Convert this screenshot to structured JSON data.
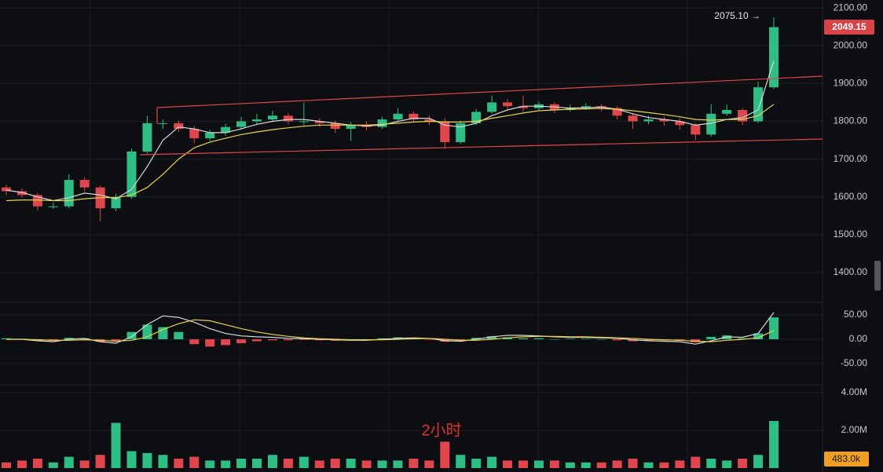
{
  "chart_data": [
    {
      "type": "candlestick",
      "open": [
        1625,
        1615,
        1605,
        1575,
        1575,
        1645,
        1625,
        1570,
        1600,
        1720,
        1795,
        1795,
        1780,
        1755,
        1770,
        1785,
        1800,
        1805,
        1815,
        1800,
        1800,
        1795,
        1780,
        1790,
        1785,
        1805,
        1820,
        1805,
        1800,
        1745,
        1795,
        1825,
        1850,
        1840,
        1835,
        1845,
        1830,
        1835,
        1840,
        1835,
        1815,
        1800,
        1805,
        1800,
        1790,
        1765,
        1820,
        1830,
        1800,
        1890
      ],
      "high": [
        1632,
        1622,
        1610,
        1585,
        1660,
        1652,
        1630,
        1608,
        1728,
        1815,
        1805,
        1802,
        1788,
        1778,
        1794,
        1812,
        1820,
        1828,
        1822,
        1850,
        1808,
        1802,
        1798,
        1800,
        1812,
        1835,
        1826,
        1815,
        1808,
        1802,
        1832,
        1868,
        1858,
        1868,
        1852,
        1850,
        1845,
        1848,
        1846,
        1840,
        1822,
        1815,
        1812,
        1808,
        1795,
        1845,
        1845,
        1835,
        1905,
        2075.1
      ],
      "low": [
        1605,
        1598,
        1565,
        1568,
        1570,
        1615,
        1535,
        1562,
        1595,
        1715,
        1780,
        1772,
        1742,
        1748,
        1762,
        1778,
        1792,
        1798,
        1792,
        1790,
        1785,
        1770,
        1748,
        1776,
        1780,
        1798,
        1798,
        1790,
        1728,
        1740,
        1790,
        1820,
        1832,
        1826,
        1828,
        1822,
        1826,
        1830,
        1826,
        1805,
        1780,
        1792,
        1788,
        1778,
        1750,
        1760,
        1815,
        1790,
        1795,
        1885
      ],
      "close": [
        1615,
        1605,
        1575,
        1575,
        1645,
        1625,
        1570,
        1600,
        1720,
        1795,
        1795,
        1780,
        1755,
        1770,
        1785,
        1800,
        1805,
        1815,
        1800,
        1800,
        1795,
        1780,
        1790,
        1785,
        1805,
        1820,
        1805,
        1800,
        1745,
        1795,
        1825,
        1850,
        1840,
        1835,
        1845,
        1830,
        1835,
        1840,
        1835,
        1815,
        1800,
        1805,
        1800,
        1790,
        1765,
        1820,
        1830,
        1800,
        1890,
        2049.15
      ],
      "lines": [
        {
          "color": "#d9d9d9",
          "values": [
            1618,
            1612,
            1600,
            1590,
            1598,
            1610,
            1605,
            1595,
            1620,
            1680,
            1750,
            1785,
            1780,
            1770,
            1770,
            1780,
            1792,
            1800,
            1805,
            1805,
            1800,
            1795,
            1790,
            1788,
            1790,
            1800,
            1808,
            1808,
            1790,
            1785,
            1795,
            1815,
            1830,
            1840,
            1840,
            1838,
            1835,
            1836,
            1838,
            1832,
            1820,
            1810,
            1805,
            1800,
            1790,
            1795,
            1805,
            1810,
            1830,
            1960
          ]
        },
        {
          "color": "#e8d44d",
          "values": [
            1590,
            1592,
            1592,
            1590,
            1590,
            1595,
            1598,
            1598,
            1605,
            1625,
            1660,
            1700,
            1730,
            1745,
            1755,
            1765,
            1772,
            1778,
            1783,
            1787,
            1790,
            1790,
            1790,
            1790,
            1792,
            1795,
            1798,
            1800,
            1798,
            1798,
            1800,
            1808,
            1815,
            1822,
            1828,
            1830,
            1832,
            1833,
            1834,
            1832,
            1828,
            1823,
            1818,
            1812,
            1805,
            1803,
            1805,
            1805,
            1815,
            1845
          ]
        }
      ],
      "up_color": "#2ebd85",
      "down_color": "#e0464d",
      "ylim": [
        1321,
        2121
      ],
      "yticks": [
        {
          "value": 1400,
          "label": "1400.00"
        },
        {
          "value": 1500,
          "label": "1500.00"
        },
        {
          "value": 1600,
          "label": "1600.00"
        },
        {
          "value": 1700,
          "label": "1700.00"
        },
        {
          "value": 1800,
          "label": "1800.00"
        },
        {
          "value": 1900,
          "label": "1900.00"
        },
        {
          "value": 2000,
          "label": "2000.00"
        },
        {
          "value": 2100,
          "label": "2100.00"
        }
      ],
      "high_annotation": "2075.10 →",
      "last_price_label": "2049.15"
    },
    {
      "type": "macd",
      "histogram": [
        2,
        1,
        -2,
        -3,
        3,
        2,
        -5,
        -3,
        15,
        30,
        25,
        15,
        -10,
        -15,
        -12,
        -8,
        -4,
        -2,
        -2,
        -1,
        -2,
        -3,
        -2,
        -1,
        2,
        4,
        2,
        -1,
        -5,
        -2,
        3,
        6,
        4,
        2,
        2,
        0,
        1,
        1,
        0,
        -2,
        -4,
        -3,
        -2,
        -3,
        -6,
        5,
        8,
        2,
        12,
        45
      ],
      "lines": [
        {
          "color": "#d9d9d9",
          "values": [
            0,
            0,
            -3,
            -5,
            0,
            2,
            -5,
            -8,
            5,
            30,
            48,
            45,
            35,
            22,
            12,
            7,
            5,
            4,
            2,
            1,
            0,
            -1,
            -2,
            -2,
            0,
            2,
            3,
            2,
            -3,
            -4,
            0,
            5,
            8,
            8,
            7,
            5,
            4,
            4,
            3,
            2,
            -1,
            -3,
            -4,
            -5,
            -10,
            -3,
            5,
            4,
            12,
            55
          ]
        },
        {
          "color": "#e8d44d",
          "values": [
            0,
            0,
            -1,
            -2,
            -2,
            -1,
            -2,
            -4,
            -2,
            5,
            20,
            32,
            40,
            38,
            30,
            22,
            15,
            10,
            6,
            3,
            1,
            0,
            -1,
            -1,
            -1,
            0,
            1,
            2,
            0,
            -2,
            -2,
            0,
            3,
            5,
            6,
            6,
            5,
            5,
            4,
            3,
            2,
            0,
            -1,
            -2,
            -4,
            -5,
            -2,
            0,
            3,
            18
          ]
        }
      ],
      "ylim": [
        -93.5,
        75.8
      ],
      "yticks": [
        {
          "value": -50,
          "label": "-50.00"
        },
        {
          "value": 0,
          "label": "0.00"
        },
        {
          "value": 50,
          "label": "50.00"
        }
      ]
    },
    {
      "type": "volume",
      "values": [
        300000,
        400000,
        500000,
        300000,
        600000,
        400000,
        700000,
        2400000,
        900000,
        800000,
        700000,
        500000,
        600000,
        400000,
        400000,
        500000,
        500000,
        700000,
        500000,
        600000,
        400000,
        500000,
        500000,
        400000,
        400000,
        400000,
        500000,
        400000,
        1400000,
        700000,
        500000,
        600000,
        400000,
        400000,
        400000,
        400000,
        300000,
        300000,
        300000,
        400000,
        500000,
        300000,
        300000,
        400000,
        600000,
        500000,
        400000,
        500000,
        700000,
        2500000
      ],
      "ylim": [
        0,
        4420000
      ],
      "yticks": [
        {
          "value": 2000000,
          "label": "2.00M"
        },
        {
          "value": 4000000,
          "label": "4.00M"
        }
      ],
      "current_label": "483.0k",
      "annotation": "2小时"
    }
  ]
}
